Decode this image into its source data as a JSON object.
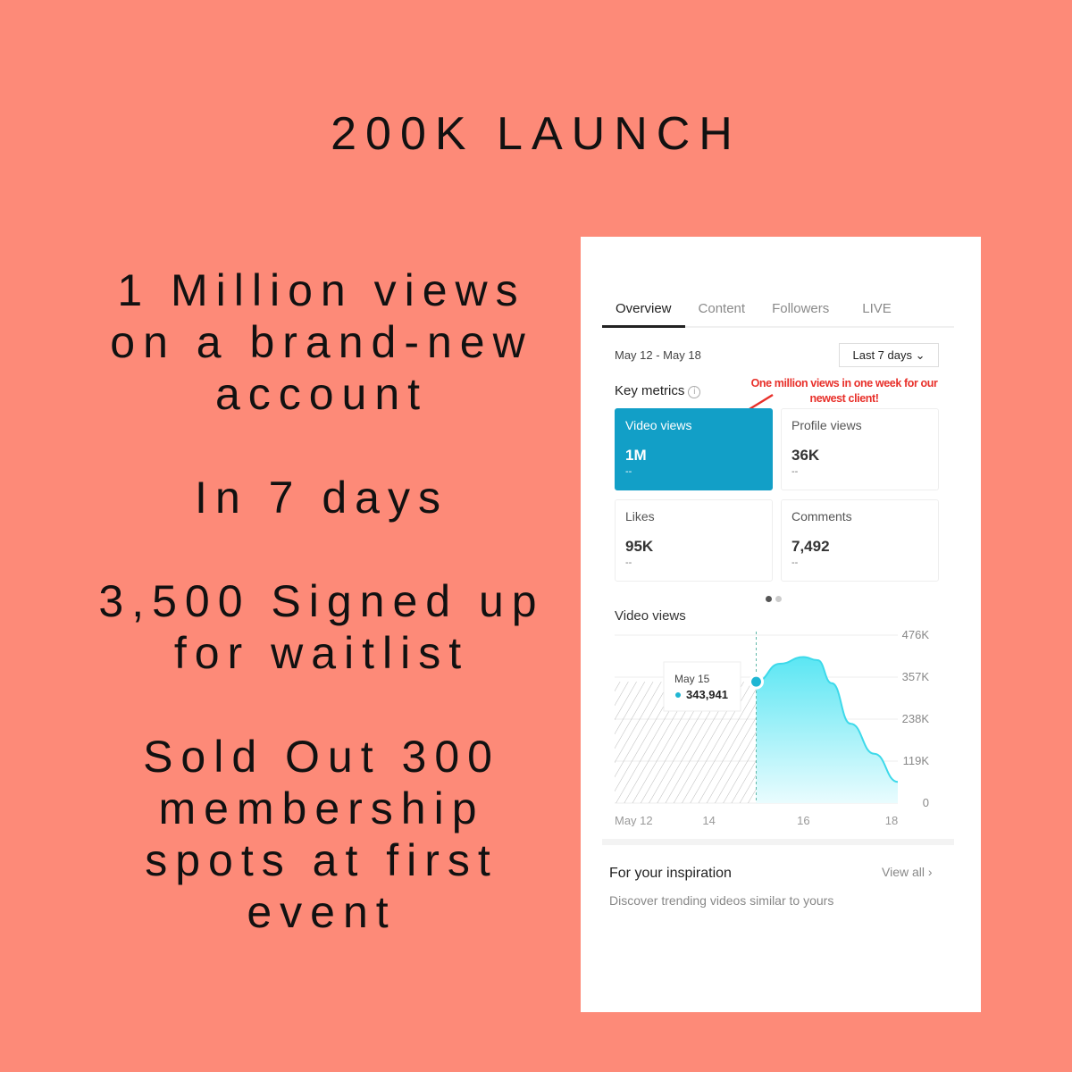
{
  "headline": "200K LAUNCH",
  "left_text": [
    "1 Million views on a brand-new account",
    "In 7 days",
    "3,500 Signed up for waitlist",
    "Sold Out 300 membership spots at first event"
  ],
  "app": {
    "tabs": [
      {
        "label": "Overview",
        "active": true
      },
      {
        "label": "Content"
      },
      {
        "label": "Followers"
      },
      {
        "label": "LIVE"
      }
    ],
    "date_range": "May 12 - May 18",
    "period_select": "Last 7 days",
    "key_metrics_label": "Key metrics",
    "annotation": "One million views in one week for our newest client!",
    "annotation_color": "#e8302a",
    "accent_color": "#129fc7",
    "metrics": [
      {
        "label": "Video views",
        "value": "1M",
        "delta": "--",
        "selected": true
      },
      {
        "label": "Profile views",
        "value": "36K",
        "delta": "--"
      },
      {
        "label": "Likes",
        "value": "95K",
        "delta": "--"
      },
      {
        "label": "Comments",
        "value": "7,492",
        "delta": "--"
      }
    ],
    "chart_title": "Video views",
    "inspiration_title": "For your inspiration",
    "view_all": "View all",
    "inspiration_sub": "Discover trending videos similar to yours"
  },
  "chart_data": {
    "type": "area",
    "x_ticks": [
      "May 12",
      "14",
      "16",
      "18"
    ],
    "y_ticks": [
      "476K",
      "357K",
      "238K",
      "119K",
      "0"
    ],
    "ylim": [
      0,
      476000
    ],
    "xlim": [
      12,
      18
    ],
    "grid": true,
    "no_data_range": [
      12,
      15
    ],
    "series": [
      {
        "x": [
          15,
          15.5,
          16,
          16.3,
          16.6,
          17,
          17.5,
          18
        ],
        "y": [
          343941,
          395000,
          414000,
          405000,
          340000,
          225000,
          140000,
          60000
        ]
      }
    ],
    "tooltip": {
      "date": "May 15",
      "value": "343,941"
    },
    "line_color": "#3dd9ea"
  }
}
